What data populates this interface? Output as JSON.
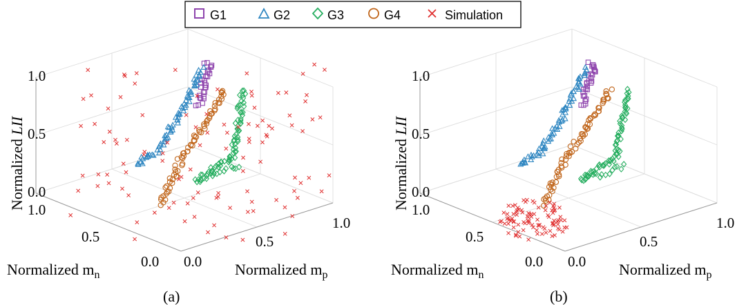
{
  "legend": {
    "entries": [
      {
        "label": "G1",
        "marker": "square",
        "color": "#8e44ad"
      },
      {
        "label": "G2",
        "marker": "triangle",
        "color": "#2e86c1"
      },
      {
        "label": "G3",
        "marker": "diamond",
        "color": "#27ae60"
      },
      {
        "label": "G4",
        "marker": "circle",
        "color": "#c0651a"
      },
      {
        "label": "Simulation",
        "marker": "x",
        "color": "#e03030"
      }
    ]
  },
  "chart_data": [
    {
      "type": "scatter",
      "panel_label": "(a)",
      "xlabel": "Normalized m",
      "xlabel_sub": "p",
      "ylabel": "Normalized m",
      "ylabel_sub": "n",
      "zlabel_prefix": "Normalized ",
      "zlabel_var": "LII",
      "xticks": [
        "0.0",
        "0.5",
        "1.0"
      ],
      "yticks": [
        "0.0",
        "0.5",
        "1.0"
      ],
      "zticks": [
        "0.0",
        "0.5",
        "1.0"
      ],
      "xlim": [
        0,
        1
      ],
      "ylim": [
        0,
        1
      ],
      "zlim": [
        0,
        1
      ],
      "simulation_mode": "scattered"
    },
    {
      "type": "scatter",
      "panel_label": "(b)",
      "xlabel": "Normalized m",
      "xlabel_sub": "p",
      "ylabel": "Normalized m",
      "ylabel_sub": "n",
      "zlabel_prefix": "Normalized ",
      "zlabel_var": "LII",
      "xticks": [
        "0.0",
        "0.5",
        "1.0"
      ],
      "yticks": [
        "0.0",
        "0.5",
        "1.0"
      ],
      "zticks": [
        "0.0",
        "0.5",
        "1.0"
      ],
      "xlim": [
        0,
        1
      ],
      "ylim": [
        0,
        1
      ],
      "zlim": [
        0,
        1
      ],
      "simulation_mode": "clustered"
    }
  ],
  "series_paths": {
    "G1": [
      [
        0.05,
        0.98,
        1.0
      ],
      [
        0.1,
        0.96,
        0.72
      ]
    ],
    "G2": [
      [
        0.0,
        0.35,
        0.02
      ],
      [
        0.04,
        0.92,
        0.98
      ]
    ],
    "G3": [
      [
        0.62,
        0.9,
        0.85
      ],
      [
        0.55,
        0.88,
        0.3
      ],
      [
        0.45,
        0.3,
        0.05
      ]
    ],
    "G4": [
      [
        0.05,
        0.05,
        0.02
      ],
      [
        0.35,
        0.92,
        0.85
      ]
    ]
  }
}
